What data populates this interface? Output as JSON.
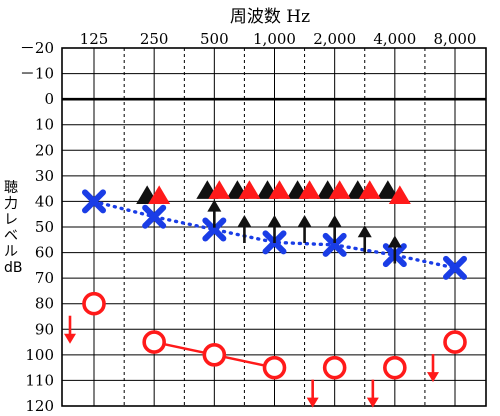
{
  "chart_data": {
    "type": "scatter",
    "title": "周波数 Hz",
    "ylabel": "聴力レベル dB",
    "x_ticks": [
      "125",
      "250",
      "500",
      "1,000",
      "2,000",
      "4,000",
      "8,000"
    ],
    "y_ticks": [
      "－20",
      "－10",
      "0",
      "10",
      "20",
      "30",
      "40",
      "50",
      "60",
      "70",
      "80",
      "90",
      "100",
      "110",
      "120"
    ],
    "ylim": [
      -20,
      120
    ],
    "x_scale": "log",
    "grid": true,
    "reference_line_db": 0,
    "series": [
      {
        "marker": "circle",
        "color": "#ff1a1a",
        "points": [
          {
            "x": 125,
            "y": 80,
            "no_response": true
          },
          {
            "x": 250,
            "y": 95
          },
          {
            "x": 500,
            "y": 100
          },
          {
            "x": 1000,
            "y": 105
          },
          {
            "x": 2000,
            "y": 105,
            "no_response": true
          },
          {
            "x": 4000,
            "y": 105,
            "no_response": true
          },
          {
            "x": 8000,
            "y": 95,
            "no_response": true
          }
        ],
        "connected_segments": [
          [
            1,
            3
          ]
        ]
      },
      {
        "marker": "x",
        "color": "#1a3de6",
        "line": "dotted",
        "points": [
          {
            "x": 125,
            "y": 40
          },
          {
            "x": 250,
            "y": 46
          },
          {
            "x": 500,
            "y": 51
          },
          {
            "x": 1000,
            "y": 56
          },
          {
            "x": 2000,
            "y": 57
          },
          {
            "x": 4000,
            "y": 61
          },
          {
            "x": 8000,
            "y": 66
          }
        ]
      },
      {
        "marker": "triangle",
        "color": "#111111",
        "points": [
          {
            "x": 250,
            "y": 38
          },
          {
            "x": 500,
            "y": 36
          },
          {
            "x": 707,
            "y": 36
          },
          {
            "x": 1000,
            "y": 36
          },
          {
            "x": 1414,
            "y": 36
          },
          {
            "x": 2000,
            "y": 36
          },
          {
            "x": 2828,
            "y": 36
          },
          {
            "x": 4000,
            "y": 36
          }
        ]
      },
      {
        "marker": "triangle",
        "color": "#ff1a1a",
        "points": [
          {
            "x": 250,
            "y": 38
          },
          {
            "x": 500,
            "y": 36
          },
          {
            "x": 707,
            "y": 36
          },
          {
            "x": 1000,
            "y": 36
          },
          {
            "x": 1414,
            "y": 36
          },
          {
            "x": 2000,
            "y": 36
          },
          {
            "x": 2828,
            "y": 36
          },
          {
            "x": 4000,
            "y": 38
          }
        ]
      },
      {
        "marker": "arrow-up",
        "color": "#111111",
        "points": [
          {
            "x": 500,
            "y": 44
          },
          {
            "x": 707,
            "y": 50
          },
          {
            "x": 1000,
            "y": 50
          },
          {
            "x": 1414,
            "y": 50
          },
          {
            "x": 2000,
            "y": 50
          },
          {
            "x": 2828,
            "y": 54
          },
          {
            "x": 4000,
            "y": 58
          }
        ]
      }
    ]
  }
}
